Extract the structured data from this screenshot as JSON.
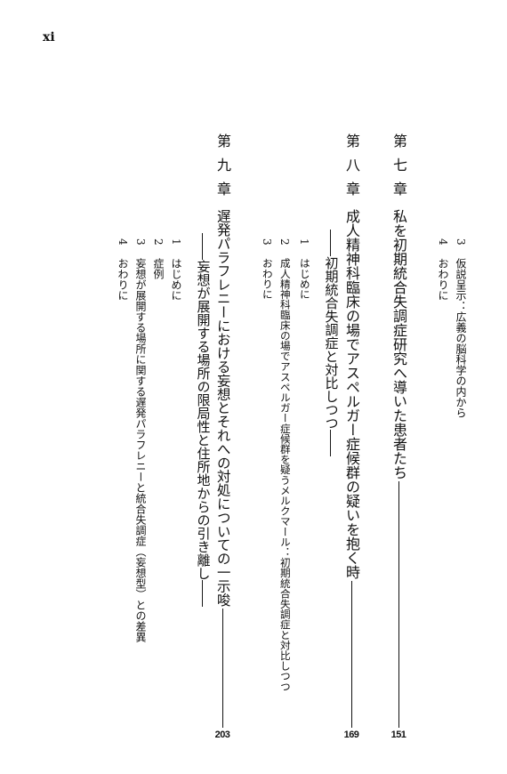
{
  "page_number": "xi",
  "previous_sections": [
    {
      "number": "3",
      "title": "仮説呈示：広義の脳科学の内から"
    },
    {
      "number": "4",
      "title": "おわりに"
    }
  ],
  "chapters": [
    {
      "label": "第七章",
      "title": "私を初期統合失調症研究へ導いた患者たち",
      "page": "151",
      "sections": []
    },
    {
      "label": "第八章",
      "title": "成人精神科臨床の場でアスペルガー症候群の疑いを抱く時",
      "subtitle": "――初期統合失調症と対比しつつ――",
      "page": "169",
      "sections": [
        {
          "number": "1",
          "title": "はじめに"
        },
        {
          "number": "2",
          "title": "成人精神科臨床の場でアスペルガー症候群を疑うメルクマール：初期統合失調症と対比しつつ"
        },
        {
          "number": "3",
          "title": "おわりに"
        }
      ]
    },
    {
      "label": "第九章",
      "title": "遅発パラフレニーにおける妄想とそれへの対処についての一示唆",
      "subtitle": "――妄想が展開する場所の限局性と住所地からの引き離し――",
      "page": "203",
      "sections": [
        {
          "number": "1",
          "title": "はじめに"
        },
        {
          "number": "2",
          "title": "症例"
        },
        {
          "number": "3",
          "title": "妄想が展開する場所に関する遅発パラフレニーと統合失調症（妄想型）との差異"
        },
        {
          "number": "4",
          "title": "おわりに"
        }
      ]
    }
  ]
}
